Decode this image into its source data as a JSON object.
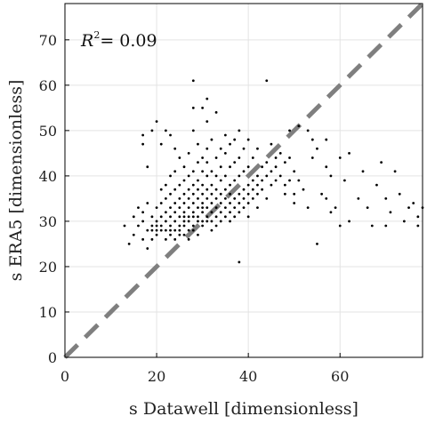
{
  "chart_data": {
    "type": "scatter",
    "xlabel": "s Datawell [dimensionless]",
    "ylabel": "s ERA5 [dimensionless]",
    "xlim": [
      0,
      78
    ],
    "ylim": [
      0,
      78
    ],
    "x_ticks": [
      0,
      20,
      40,
      60
    ],
    "y_ticks": [
      0,
      10,
      20,
      30,
      40,
      50,
      60,
      70
    ],
    "grid": true,
    "legend": "none",
    "annotation": {
      "prefix": "R",
      "sup": "2",
      "text": "= 0.09"
    },
    "reference_line": {
      "from": [
        0,
        0
      ],
      "to": [
        78,
        78
      ],
      "style": "dashed",
      "color": "#7f7f7f"
    },
    "point_color": "#000000",
    "points": [
      [
        13,
        29
      ],
      [
        14,
        25
      ],
      [
        15,
        27
      ],
      [
        15,
        31
      ],
      [
        16,
        29
      ],
      [
        16,
        33
      ],
      [
        17,
        26
      ],
      [
        17,
        30
      ],
      [
        17,
        32
      ],
      [
        17,
        47
      ],
      [
        17,
        49
      ],
      [
        18,
        28
      ],
      [
        18,
        24
      ],
      [
        18,
        34
      ],
      [
        18,
        42
      ],
      [
        19,
        26
      ],
      [
        19,
        28
      ],
      [
        19,
        29
      ],
      [
        19,
        31
      ],
      [
        19,
        50
      ],
      [
        20,
        27
      ],
      [
        20,
        30
      ],
      [
        20,
        33
      ],
      [
        20,
        29
      ],
      [
        20,
        52
      ],
      [
        20,
        28
      ],
      [
        21,
        31
      ],
      [
        21,
        34
      ],
      [
        21,
        28
      ],
      [
        21,
        37
      ],
      [
        21,
        29
      ],
      [
        21,
        47
      ],
      [
        22,
        26
      ],
      [
        22,
        30
      ],
      [
        22,
        32
      ],
      [
        22,
        35
      ],
      [
        22,
        28
      ],
      [
        22,
        50
      ],
      [
        22,
        38
      ],
      [
        23,
        29
      ],
      [
        23,
        33
      ],
      [
        23,
        27
      ],
      [
        23,
        36
      ],
      [
        23,
        31
      ],
      [
        23,
        40
      ],
      [
        23,
        49
      ],
      [
        23,
        28
      ],
      [
        24,
        30
      ],
      [
        24,
        34
      ],
      [
        24,
        32
      ],
      [
        24,
        28
      ],
      [
        24,
        37
      ],
      [
        24,
        26
      ],
      [
        24,
        41
      ],
      [
        24,
        46
      ],
      [
        25,
        29
      ],
      [
        25,
        31
      ],
      [
        25,
        35
      ],
      [
        25,
        33
      ],
      [
        25,
        28
      ],
      [
        25,
        38
      ],
      [
        25,
        27
      ],
      [
        25,
        44
      ],
      [
        26,
        30
      ],
      [
        26,
        32
      ],
      [
        26,
        36
      ],
      [
        26,
        29
      ],
      [
        26,
        34
      ],
      [
        26,
        39
      ],
      [
        26,
        31
      ],
      [
        26,
        42
      ],
      [
        26,
        27
      ],
      [
        27,
        30
      ],
      [
        27,
        33
      ],
      [
        27,
        35
      ],
      [
        27,
        28
      ],
      [
        27,
        37
      ],
      [
        27,
        40
      ],
      [
        27,
        31
      ],
      [
        27,
        45
      ],
      [
        27,
        26
      ],
      [
        28,
        31
      ],
      [
        28,
        29
      ],
      [
        28,
        34
      ],
      [
        28,
        36
      ],
      [
        28,
        32
      ],
      [
        28,
        38
      ],
      [
        28,
        28
      ],
      [
        28,
        41
      ],
      [
        28,
        50
      ],
      [
        28,
        55
      ],
      [
        28,
        61
      ],
      [
        29,
        30
      ],
      [
        29,
        33
      ],
      [
        29,
        35
      ],
      [
        29,
        27
      ],
      [
        29,
        37
      ],
      [
        29,
        31
      ],
      [
        29,
        39
      ],
      [
        29,
        43
      ],
      [
        29,
        47
      ],
      [
        30,
        32
      ],
      [
        30,
        30
      ],
      [
        30,
        34
      ],
      [
        30,
        36
      ],
      [
        30,
        29
      ],
      [
        30,
        38
      ],
      [
        30,
        41
      ],
      [
        30,
        33
      ],
      [
        30,
        44
      ],
      [
        30,
        55
      ],
      [
        31,
        31
      ],
      [
        31,
        33
      ],
      [
        31,
        35
      ],
      [
        31,
        37
      ],
      [
        31,
        30
      ],
      [
        31,
        40
      ],
      [
        31,
        43
      ],
      [
        31,
        46
      ],
      [
        31,
        52
      ],
      [
        31,
        57
      ],
      [
        32,
        32
      ],
      [
        32,
        34
      ],
      [
        32,
        36
      ],
      [
        32,
        30
      ],
      [
        32,
        38
      ],
      [
        32,
        41
      ],
      [
        32,
        48
      ],
      [
        32,
        28
      ],
      [
        33,
        33
      ],
      [
        33,
        35
      ],
      [
        33,
        31
      ],
      [
        33,
        37
      ],
      [
        33,
        40
      ],
      [
        33,
        44
      ],
      [
        33,
        54
      ],
      [
        33,
        29
      ],
      [
        34,
        34
      ],
      [
        34,
        32
      ],
      [
        34,
        36
      ],
      [
        34,
        39
      ],
      [
        34,
        42
      ],
      [
        34,
        46
      ],
      [
        34,
        30
      ],
      [
        35,
        33
      ],
      [
        35,
        35
      ],
      [
        35,
        37
      ],
      [
        35,
        31
      ],
      [
        35,
        40
      ],
      [
        35,
        45
      ],
      [
        35,
        49
      ],
      [
        36,
        34
      ],
      [
        36,
        32
      ],
      [
        36,
        38
      ],
      [
        36,
        36
      ],
      [
        36,
        42
      ],
      [
        36,
        30
      ],
      [
        36,
        47
      ],
      [
        37,
        35
      ],
      [
        37,
        33
      ],
      [
        37,
        39
      ],
      [
        37,
        43
      ],
      [
        37,
        31
      ],
      [
        37,
        48
      ],
      [
        38,
        36
      ],
      [
        38,
        34
      ],
      [
        38,
        40
      ],
      [
        38,
        32
      ],
      [
        38,
        44
      ],
      [
        38,
        21
      ],
      [
        38,
        50
      ],
      [
        39,
        37
      ],
      [
        39,
        35
      ],
      [
        39,
        41
      ],
      [
        39,
        33
      ],
      [
        39,
        46
      ],
      [
        40,
        36
      ],
      [
        40,
        38
      ],
      [
        40,
        34
      ],
      [
        40,
        42
      ],
      [
        40,
        48
      ],
      [
        40,
        31
      ],
      [
        41,
        37
      ],
      [
        41,
        39
      ],
      [
        41,
        44
      ],
      [
        41,
        35
      ],
      [
        42,
        38
      ],
      [
        42,
        40
      ],
      [
        42,
        36
      ],
      [
        42,
        46
      ],
      [
        42,
        33
      ],
      [
        43,
        39
      ],
      [
        43,
        42
      ],
      [
        43,
        37
      ],
      [
        44,
        40
      ],
      [
        44,
        43
      ],
      [
        44,
        35
      ],
      [
        44,
        61
      ],
      [
        45,
        41
      ],
      [
        45,
        38
      ],
      [
        45,
        47
      ],
      [
        46,
        42
      ],
      [
        46,
        39
      ],
      [
        46,
        44
      ],
      [
        47,
        40
      ],
      [
        47,
        45
      ],
      [
        48,
        43
      ],
      [
        48,
        36
      ],
      [
        48,
        38
      ],
      [
        49,
        44
      ],
      [
        49,
        39
      ],
      [
        49,
        50
      ],
      [
        50,
        36
      ],
      [
        50,
        41
      ],
      [
        50,
        34
      ],
      [
        51,
        51
      ],
      [
        51,
        39
      ],
      [
        52,
        37
      ],
      [
        53,
        33
      ],
      [
        53,
        50
      ],
      [
        54,
        44
      ],
      [
        54,
        48
      ],
      [
        55,
        25
      ],
      [
        55,
        46
      ],
      [
        56,
        36
      ],
      [
        57,
        35
      ],
      [
        57,
        42
      ],
      [
        57,
        48
      ],
      [
        58,
        32
      ],
      [
        58,
        40
      ],
      [
        59,
        33
      ],
      [
        60,
        44
      ],
      [
        60,
        29
      ],
      [
        61,
        39
      ],
      [
        62,
        45
      ],
      [
        62,
        30
      ],
      [
        64,
        35
      ],
      [
        65,
        41
      ],
      [
        66,
        33
      ],
      [
        67,
        29
      ],
      [
        68,
        38
      ],
      [
        69,
        43
      ],
      [
        70,
        35
      ],
      [
        70,
        29
      ],
      [
        71,
        32
      ],
      [
        72,
        41
      ],
      [
        73,
        36
      ],
      [
        74,
        30
      ],
      [
        75,
        33
      ],
      [
        76,
        34
      ],
      [
        77,
        29
      ],
      [
        77,
        31
      ],
      [
        78,
        33
      ]
    ]
  }
}
